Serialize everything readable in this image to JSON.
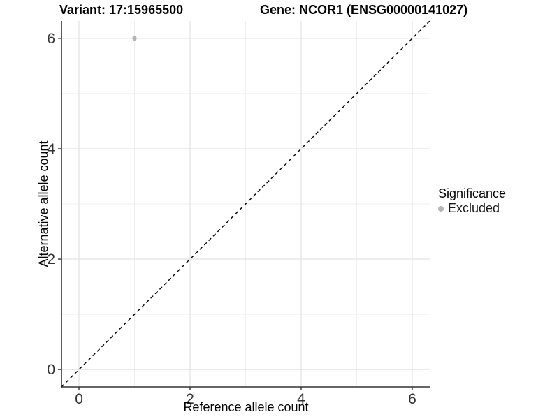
{
  "chart_data": {
    "type": "scatter",
    "title_left": "Variant: 17:15965500",
    "title_right": "Gene: NCOR1 (ENSG00000141027)",
    "xlabel": "Reference allele count",
    "ylabel": "Alternative allele count",
    "xlim": [
      -0.315,
      6.315
    ],
    "ylim": [
      -0.315,
      6.315
    ],
    "x_ticks": [
      0,
      2,
      4,
      6
    ],
    "y_ticks": [
      0,
      2,
      4,
      6
    ],
    "x_minor_ticks": [
      1,
      3,
      5
    ],
    "y_minor_ticks": [
      1,
      3,
      5
    ],
    "grid": true,
    "points": [
      {
        "x": 1,
        "y": 6,
        "significance": "Excluded"
      }
    ],
    "identity_line": {
      "slope": 1,
      "intercept": 0,
      "style": "dashed",
      "color": "#000000"
    },
    "legend": {
      "title": "Significance",
      "position": "right",
      "items": [
        {
          "label": "Excluded",
          "color": "#b5b5b5"
        }
      ]
    },
    "colors": {
      "point": "#b5b5b5",
      "grid_major": "#e2e2e2",
      "grid_minor": "#efefef",
      "axis_line": "#333333",
      "tick_label": "#333333",
      "title": "#000000"
    }
  }
}
